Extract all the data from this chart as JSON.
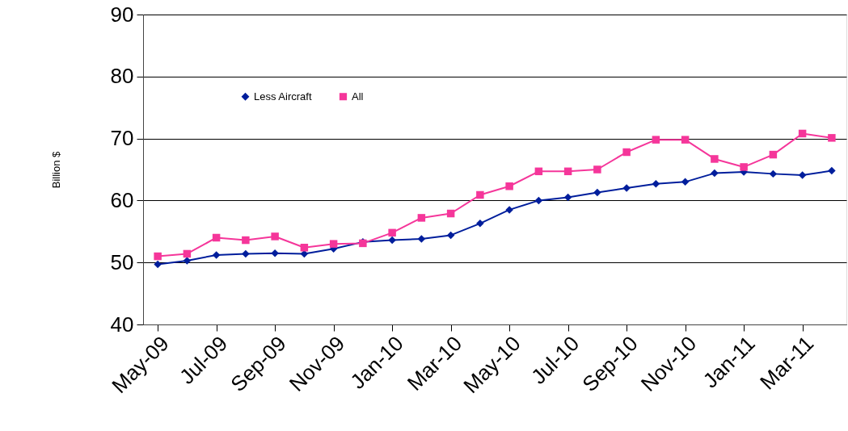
{
  "chart_data": {
    "type": "line",
    "ylabel": "Billion $",
    "categories": [
      "May-09",
      null,
      "Jul-09",
      null,
      "Sep-09",
      null,
      "Nov-09",
      null,
      "Jan-10",
      null,
      "Mar-10",
      null,
      "May-10",
      null,
      "Jul-10",
      null,
      "Sep-10",
      null,
      "Nov-10",
      null,
      "Jan-11",
      null,
      "Mar-11",
      null
    ],
    "series": [
      {
        "name": "Less Aircraft",
        "color": "#001e9c",
        "marker": "diamond",
        "values": [
          49.7,
          50.3,
          51.2,
          51.4,
          51.5,
          51.4,
          52.2,
          53.3,
          53.6,
          53.8,
          54.4,
          56.3,
          58.5,
          60.0,
          60.5,
          61.3,
          62.0,
          62.7,
          63.0,
          64.4,
          64.6,
          64.3,
          64.1,
          64.8
        ]
      },
      {
        "name": "All",
        "color": "#f5369a",
        "marker": "square",
        "values": [
          51.0,
          51.4,
          54.0,
          53.6,
          54.2,
          52.4,
          53.0,
          53.1,
          54.8,
          57.2,
          57.9,
          60.9,
          62.3,
          64.7,
          64.7,
          65.0,
          67.8,
          69.8,
          69.8,
          66.7,
          65.4,
          67.4,
          70.8,
          70.1
        ]
      }
    ],
    "ylim": [
      40,
      90
    ],
    "yticks": [
      40,
      50,
      60,
      70,
      80,
      90
    ],
    "grid": "y",
    "legend": "top",
    "line_style": "solid"
  }
}
